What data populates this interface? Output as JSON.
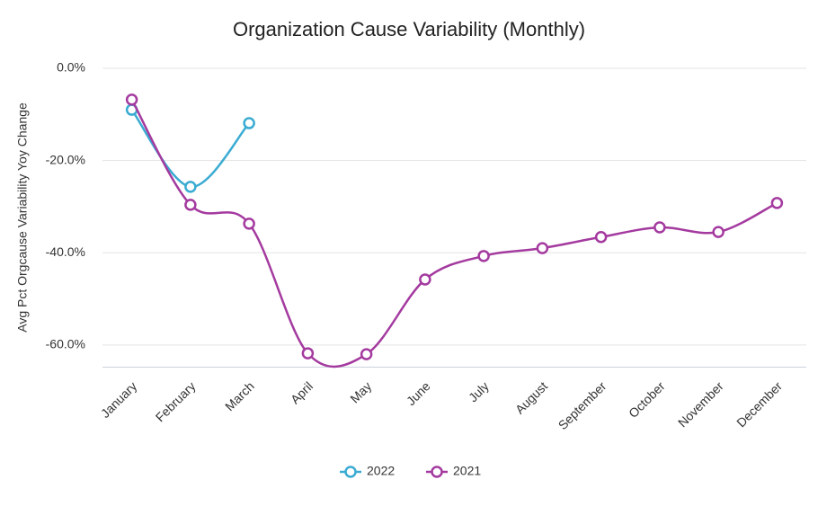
{
  "chart_data": {
    "type": "line",
    "title": "Organization Cause Variability (Monthly)",
    "y_label": "Avg Pct Orgcause Variability Yoy Change",
    "categories": [
      "January",
      "February",
      "March",
      "April",
      "May",
      "June",
      "July",
      "August",
      "September",
      "October",
      "November",
      "December"
    ],
    "series": [
      {
        "name": "2022",
        "color": "#3aabd2",
        "values": [
          -9.0,
          -25.7,
          -11.9,
          null,
          null,
          null,
          null,
          null,
          null,
          null,
          null,
          null
        ]
      },
      {
        "name": "2021",
        "color": "#a43a9f",
        "values": [
          -6.8,
          -29.6,
          -33.7,
          -61.8,
          -62.0,
          -45.8,
          -40.7,
          -39.0,
          -36.6,
          -34.5,
          -35.5,
          -29.2
        ]
      }
    ],
    "ylim": [
      -65,
      0
    ],
    "yticks": [
      {
        "value": 0,
        "label": "0.0%"
      },
      {
        "value": -20,
        "label": "-20.0%"
      },
      {
        "value": -40,
        "label": "-40.0%"
      },
      {
        "value": -60,
        "label": "-60.0%"
      }
    ],
    "grid": true,
    "legend": "bottom"
  }
}
